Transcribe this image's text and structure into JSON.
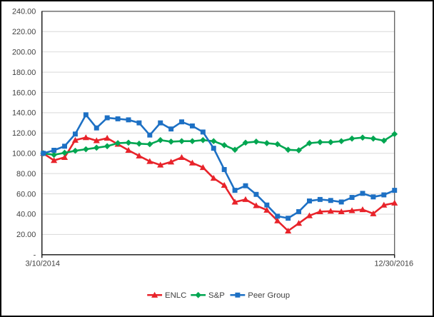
{
  "chart_data": {
    "type": "line",
    "title": "",
    "grid": true,
    "legend_position": "bottom",
    "y_axis": {
      "range": [
        0,
        240
      ],
      "tick_step": 20,
      "tick_labels": [
        "240.00",
        "220.00",
        "200.00",
        "180.00",
        "160.00",
        "140.00",
        "120.00",
        "100.00",
        "80.00",
        "60.00",
        "40.00",
        "20.00",
        "-"
      ]
    },
    "x_axis": {
      "first_label": "3/10/2014",
      "last_label": "12/30/2016"
    },
    "colors": {
      "enlc": "#e8232a",
      "sp": "#00a651",
      "peer": "#1d70c4",
      "gridline": "#d9d9d9",
      "axis": "#1a1a1a",
      "plot_border": "#4d4d4d",
      "label_text": "#404040"
    },
    "series": [
      {
        "name": "ENLC",
        "marker": "triangle",
        "color_key": "enlc",
        "values": [
          100,
          93,
          96,
          113,
          115.5,
          112.5,
          115,
          109,
          103,
          97.5,
          92,
          88.5,
          91.5,
          96,
          90.5,
          86,
          75.5,
          68.5,
          52,
          54.5,
          48.5,
          44,
          33.5,
          23.5,
          31,
          38.5,
          42.5,
          43,
          42.5,
          43.5,
          44.5,
          40.5,
          49,
          51
        ]
      },
      {
        "name": "S&P",
        "marker": "diamond",
        "color_key": "sp",
        "values": [
          100,
          98.5,
          100.5,
          102.5,
          104,
          105.5,
          107,
          110,
          110.5,
          109.5,
          109,
          113,
          111.5,
          112,
          112,
          113,
          112,
          108,
          103.5,
          110.5,
          111.5,
          110,
          109,
          103.5,
          103,
          110,
          111,
          111,
          112,
          114.5,
          115.5,
          114.5,
          112.5,
          119
        ]
      },
      {
        "name": "Peer Group",
        "marker": "square",
        "color_key": "peer",
        "values": [
          100,
          103,
          107,
          119,
          138,
          125,
          135,
          134,
          133,
          130,
          118,
          130,
          124,
          131,
          127,
          121,
          105,
          84,
          63.5,
          68,
          59.5,
          49,
          38,
          36,
          42.5,
          53,
          54.5,
          53.5,
          52,
          56.5,
          60.5,
          57,
          59,
          63.5
        ]
      }
    ]
  }
}
